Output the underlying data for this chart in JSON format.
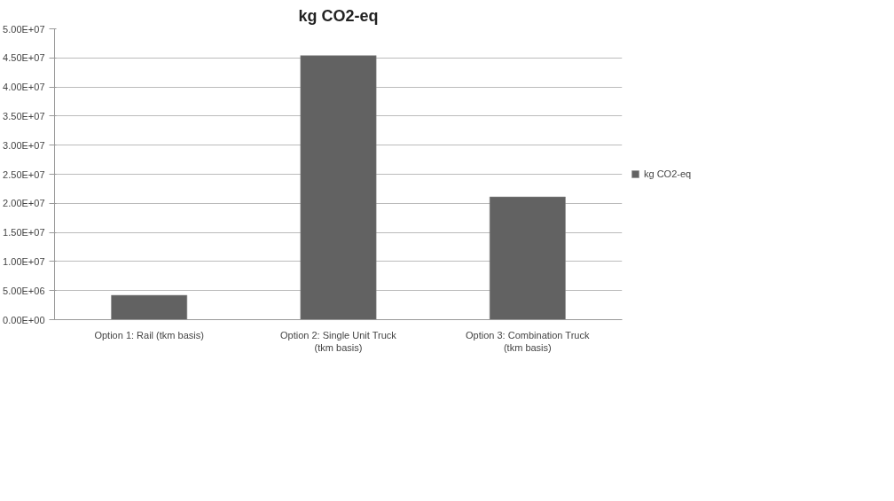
{
  "chart_data": {
    "type": "bar",
    "title": "kg CO2-eq",
    "categories": [
      "Option 1: Rail (tkm basis)",
      "Option 2: Single Unit Truck (tkm basis)",
      "Option 3: Combination Truck (tkm basis)"
    ],
    "series": [
      {
        "name": "kg CO2-eq",
        "color": "#626262",
        "values": [
          4200000,
          45400000,
          21100000
        ]
      }
    ],
    "ylim": [
      0,
      50000000
    ],
    "yticks": [
      {
        "value": 0,
        "label": "0.00E+00"
      },
      {
        "value": 5000000,
        "label": "5.00E+06"
      },
      {
        "value": 10000000,
        "label": "1.00E+07"
      },
      {
        "value": 15000000,
        "label": "1.50E+07"
      },
      {
        "value": 20000000,
        "label": "2.00E+07"
      },
      {
        "value": 25000000,
        "label": "2.50E+07"
      },
      {
        "value": 30000000,
        "label": "3.00E+07"
      },
      {
        "value": 35000000,
        "label": "3.50E+07"
      },
      {
        "value": 40000000,
        "label": "4.00E+07"
      },
      {
        "value": 45000000,
        "label": "4.50E+07"
      },
      {
        "value": 50000000,
        "label": "5.00E+07"
      }
    ],
    "grid": "y",
    "legend": "right"
  }
}
